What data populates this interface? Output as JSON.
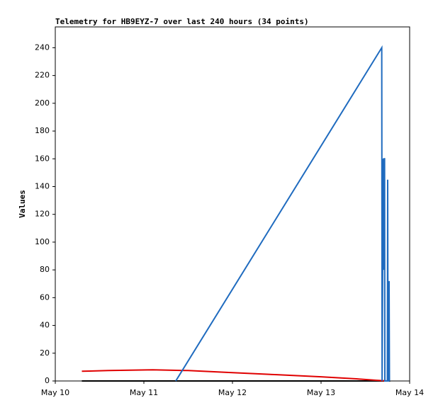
{
  "chart_data": {
    "type": "line",
    "title": "Telemetry for HB9EYZ-7 over last 240 hours (34 points)",
    "y_label": "Values",
    "xlim": [
      0,
      4
    ],
    "xticks": [
      {
        "value": 0,
        "label": "May 10"
      },
      {
        "value": 1,
        "label": "May 11"
      },
      {
        "value": 2,
        "label": "May 12"
      },
      {
        "value": 3,
        "label": "May 13"
      },
      {
        "value": 4,
        "label": "May 14"
      }
    ],
    "ylim": [
      0,
      255
    ],
    "yticks": [
      0,
      20,
      40,
      60,
      80,
      100,
      120,
      140,
      160,
      180,
      200,
      220,
      240
    ],
    "grid": false,
    "series": [
      {
        "color": "#000000",
        "x": [
          0.3,
          3.78
        ],
        "values": [
          0,
          0
        ]
      },
      {
        "color": "#e00000",
        "x": [
          0.3,
          0.6,
          1.1,
          1.5,
          2.0,
          2.5,
          3.0,
          3.4,
          3.62,
          3.75,
          3.77
        ],
        "values": [
          7,
          7.5,
          8,
          7.5,
          6,
          4.5,
          3,
          1.5,
          0.5,
          0,
          7
        ]
      },
      {
        "color": "#1f6bbf",
        "x": [
          1.36,
          3.685,
          3.689,
          3.701,
          3.705,
          3.709,
          3.717,
          3.72,
          3.748,
          3.752,
          3.756,
          3.764,
          3.768,
          3.772
        ],
        "values": [
          0,
          240,
          0,
          160,
          80,
          160,
          160,
          0,
          0,
          145,
          0,
          0,
          72,
          0
        ]
      }
    ]
  }
}
